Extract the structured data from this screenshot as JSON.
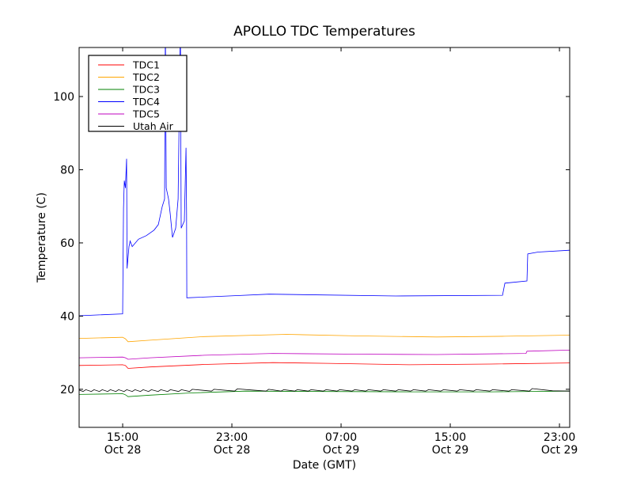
{
  "chart_data": {
    "type": "line",
    "title": "APOLLO TDC Temperatures",
    "xlabel": "Date (GMT)",
    "ylabel": "Temperature (C)",
    "x_units": "hours since Oct 28 00:00 GMT",
    "xlim": [
      11.81,
      47.75
    ],
    "ylim": [
      9.6,
      113.4
    ],
    "xticks": [
      {
        "value": 15,
        "label1": "15:00",
        "label2": "Oct 28"
      },
      {
        "value": 23,
        "label1": "23:00",
        "label2": "Oct 28"
      },
      {
        "value": 31,
        "label1": "07:00",
        "label2": "Oct 29"
      },
      {
        "value": 39,
        "label1": "15:00",
        "label2": "Oct 29"
      },
      {
        "value": 47,
        "label1": "23:00",
        "label2": "Oct 29"
      }
    ],
    "yticks": [
      20,
      40,
      60,
      80,
      100
    ],
    "grid": false,
    "legend_position": "top-left",
    "series": [
      {
        "name": "TDC1",
        "color": "#ff0000",
        "points": [
          [
            11.81,
            26.5
          ],
          [
            15,
            26.7
          ],
          [
            15.2,
            26.5
          ],
          [
            15.4,
            25.7
          ],
          [
            17,
            26.1
          ],
          [
            21,
            26.8
          ],
          [
            26,
            27.3
          ],
          [
            30,
            27.1
          ],
          [
            36,
            26.7
          ],
          [
            42,
            26.9
          ],
          [
            47.75,
            27.2
          ]
        ]
      },
      {
        "name": "TDC2",
        "color": "#ffa500",
        "points": [
          [
            11.81,
            33.9
          ],
          [
            15,
            34.2
          ],
          [
            15.2,
            33.8
          ],
          [
            15.4,
            33.0
          ],
          [
            17,
            33.4
          ],
          [
            21,
            34.4
          ],
          [
            27,
            35.0
          ],
          [
            32,
            34.6
          ],
          [
            38,
            34.3
          ],
          [
            43,
            34.5
          ],
          [
            47.75,
            34.8
          ]
        ]
      },
      {
        "name": "TDC3",
        "color": "#008000",
        "points": [
          [
            11.81,
            18.6
          ],
          [
            15,
            18.8
          ],
          [
            15.2,
            18.5
          ],
          [
            15.4,
            18.0
          ],
          [
            17,
            18.4
          ],
          [
            20,
            19.0
          ],
          [
            24,
            19.5
          ],
          [
            30,
            19.4
          ],
          [
            36,
            19.3
          ],
          [
            42,
            19.3
          ],
          [
            47.75,
            19.5
          ]
        ]
      },
      {
        "name": "TDC4",
        "color": "#0000ff",
        "points": [
          [
            11.81,
            40.1
          ],
          [
            15,
            40.6
          ],
          [
            15.06,
            69.5
          ],
          [
            15.12,
            77
          ],
          [
            15.2,
            75
          ],
          [
            15.29,
            83
          ],
          [
            15.32,
            53
          ],
          [
            15.46,
            59
          ],
          [
            15.55,
            60.5
          ],
          [
            15.7,
            59
          ],
          [
            16.16,
            61
          ],
          [
            16.74,
            62
          ],
          [
            17.3,
            63.5
          ],
          [
            17.61,
            65
          ],
          [
            17.9,
            70
          ],
          [
            18.07,
            72
          ],
          [
            18.13,
            120
          ],
          [
            18.19,
            75
          ],
          [
            18.36,
            72
          ],
          [
            18.48,
            68
          ],
          [
            18.65,
            61.5
          ],
          [
            18.88,
            64
          ],
          [
            19.06,
            72
          ],
          [
            19.23,
            120
          ],
          [
            19.29,
            64
          ],
          [
            19.52,
            66
          ],
          [
            19.64,
            86
          ],
          [
            19.68,
            68
          ],
          [
            19.7,
            45
          ],
          [
            23.41,
            45.6
          ],
          [
            25.72,
            46
          ],
          [
            35,
            45.5
          ],
          [
            42.83,
            45.7
          ],
          [
            43.0,
            49
          ],
          [
            44.62,
            49.6
          ],
          [
            44.68,
            57
          ],
          [
            45.43,
            57.5
          ],
          [
            47.75,
            58
          ]
        ]
      },
      {
        "name": "TDC5",
        "color": "#bf00bf",
        "points": [
          [
            11.81,
            28.6
          ],
          [
            15,
            28.8
          ],
          [
            15.2,
            28.6
          ],
          [
            15.4,
            28.2
          ],
          [
            17,
            28.6
          ],
          [
            21,
            29.3
          ],
          [
            26,
            29.8
          ],
          [
            32,
            29.6
          ],
          [
            38,
            29.5
          ],
          [
            44.55,
            29.8
          ],
          [
            44.62,
            30.4
          ],
          [
            47.75,
            30.7
          ]
        ]
      },
      {
        "name": "Utah Air",
        "color": "#000000",
        "points": [
          [
            11.81,
            19.8
          ],
          [
            12.1,
            19.4
          ],
          [
            12.3,
            19.9
          ],
          [
            12.7,
            19.4
          ],
          [
            12.9,
            19.9
          ],
          [
            13.3,
            19.4
          ],
          [
            13.5,
            19.9
          ],
          [
            13.9,
            19.4
          ],
          [
            14.1,
            19.9
          ],
          [
            14.5,
            19.4
          ],
          [
            14.7,
            19.9
          ],
          [
            15.1,
            19.4
          ],
          [
            15.3,
            19.9
          ],
          [
            15.7,
            19.4
          ],
          [
            15.9,
            19.9
          ],
          [
            16.3,
            19.4
          ],
          [
            16.5,
            19.9
          ],
          [
            16.9,
            19.4
          ],
          [
            17.1,
            19.9
          ],
          [
            17.6,
            19.4
          ],
          [
            17.8,
            19.9
          ],
          [
            18.3,
            19.4
          ],
          [
            18.5,
            19.9
          ],
          [
            19.1,
            19.4
          ],
          [
            19.3,
            19.9
          ],
          [
            19.9,
            19.4
          ],
          [
            20.1,
            20.0
          ],
          [
            21.5,
            19.5
          ],
          [
            21.7,
            20.0
          ],
          [
            23.2,
            19.5
          ],
          [
            23.4,
            20.1
          ],
          [
            25.5,
            19.5
          ],
          [
            25.7,
            20.0
          ],
          [
            26.6,
            19.5
          ],
          [
            26.8,
            19.9
          ],
          [
            27.6,
            19.5
          ],
          [
            27.8,
            19.9
          ],
          [
            28.6,
            19.5
          ],
          [
            28.8,
            19.9
          ],
          [
            29.7,
            19.5
          ],
          [
            29.9,
            19.9
          ],
          [
            30.7,
            19.5
          ],
          [
            30.9,
            19.9
          ],
          [
            31.8,
            19.5
          ],
          [
            32,
            19.9
          ],
          [
            32.8,
            19.5
          ],
          [
            33,
            19.9
          ],
          [
            33.9,
            19.5
          ],
          [
            34.1,
            19.9
          ],
          [
            35,
            19.5
          ],
          [
            35.2,
            19.9
          ],
          [
            36.1,
            19.5
          ],
          [
            36.3,
            19.9
          ],
          [
            37.2,
            19.5
          ],
          [
            37.4,
            19.9
          ],
          [
            38.3,
            19.5
          ],
          [
            38.5,
            19.9
          ],
          [
            39.5,
            19.5
          ],
          [
            39.7,
            19.9
          ],
          [
            40.7,
            19.5
          ],
          [
            40.9,
            19.9
          ],
          [
            41.9,
            19.5
          ],
          [
            42.1,
            19.9
          ],
          [
            43.3,
            19.5
          ],
          [
            43.5,
            19.9
          ],
          [
            44.8,
            19.5
          ],
          [
            45,
            20.2
          ],
          [
            46.5,
            19.6
          ],
          [
            47.75,
            19.5
          ]
        ]
      }
    ]
  }
}
